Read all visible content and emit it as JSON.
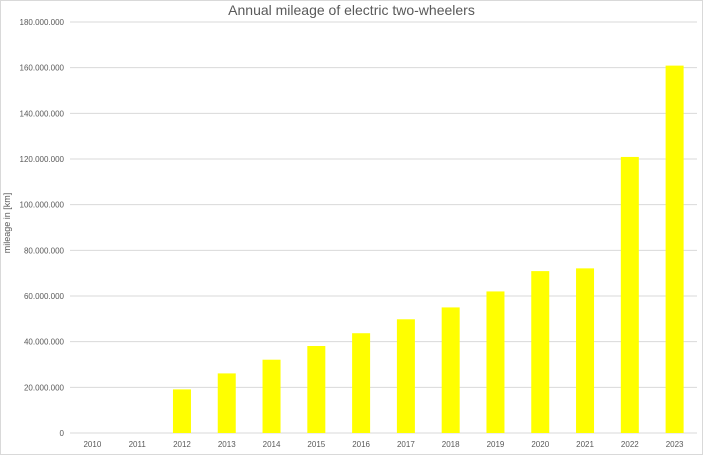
{
  "chart_data": {
    "type": "bar",
    "title": "Annual mileage of electric two-wheelers",
    "xlabel": "",
    "ylabel": "mileage in [km]",
    "categories": [
      "2010",
      "2011",
      "2012",
      "2013",
      "2014",
      "2015",
      "2016",
      "2017",
      "2018",
      "2019",
      "2020",
      "2021",
      "2022",
      "2023"
    ],
    "values": [
      0,
      0,
      19100000,
      26100000,
      32100000,
      38100000,
      43700000,
      49800000,
      55000000,
      62000000,
      70900000,
      72100000,
      120900000,
      160900000
    ],
    "ylim": [
      0,
      180000000
    ],
    "yticks": [
      0,
      20000000,
      40000000,
      60000000,
      80000000,
      100000000,
      120000000,
      140000000,
      160000000,
      180000000
    ],
    "ytick_labels": [
      "0",
      "20.000.000",
      "40.000.000",
      "60.000.000",
      "80.000.000",
      "100.000.000",
      "120.000.000",
      "140.000.000",
      "160.000.000",
      "180.000.000"
    ],
    "grid": true,
    "legend": "none",
    "bar_color": "#FFFF00"
  }
}
